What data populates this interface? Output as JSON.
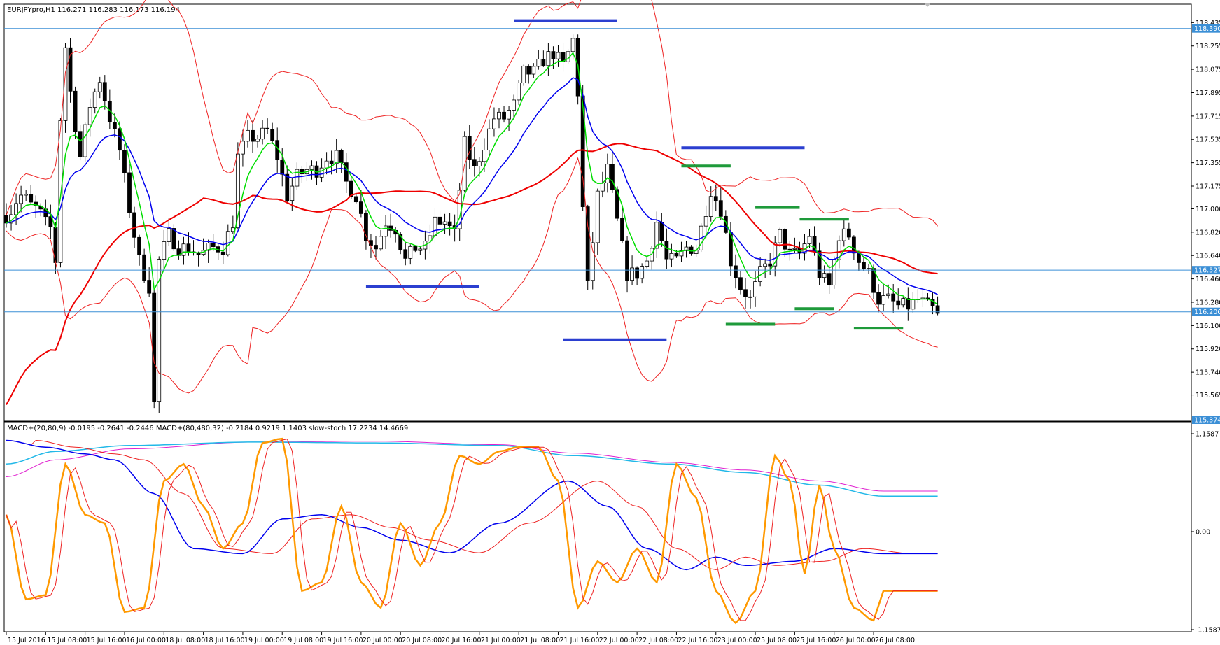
{
  "chart_data": {
    "type": "candlestick",
    "main": {
      "header": "EURJPYpro,H1  116.271 116.283 116.173 116.194",
      "ylim": [
        115.374,
        118.48
      ],
      "y_ticks": [
        "118.435",
        "118.255",
        "118.075",
        "117.895",
        "117.715",
        "117.535",
        "117.355",
        "117.175",
        "117.000",
        "116.820",
        "116.640",
        "116.460",
        "116.280",
        "116.100",
        "115.920",
        "115.740",
        "115.565"
      ],
      "y_tick_values": [
        118.435,
        118.255,
        118.075,
        117.895,
        117.715,
        117.535,
        117.355,
        117.175,
        117.0,
        116.82,
        116.64,
        116.46,
        116.28,
        116.1,
        115.92,
        115.74,
        115.565
      ],
      "price_tags": [
        {
          "label": "118.390",
          "value": 118.39,
          "bg": "#3b8fd6"
        },
        {
          "label": "116.527",
          "value": 116.527,
          "bg": "#3b8fd6"
        },
        {
          "label": "116.206",
          "value": 116.206,
          "bg": "#3b8fd6"
        },
        {
          "label": "115.374",
          "value": 115.374,
          "bg": "#3b8fd6"
        }
      ],
      "hlines": [
        118.39,
        116.527,
        116.206
      ],
      "bar_count": 212,
      "bar_anchors": [
        [
          0,
          116.95
        ],
        [
          3,
          117.1
        ],
        [
          6,
          117.0
        ],
        [
          9,
          116.85
        ],
        [
          10,
          116.6
        ],
        [
          11,
          117.7
        ],
        [
          12,
          118.25
        ],
        [
          13,
          117.9
        ],
        [
          15,
          117.4
        ],
        [
          17,
          117.8
        ],
        [
          19,
          118.0
        ],
        [
          21,
          117.7
        ],
        [
          23,
          117.45
        ],
        [
          25,
          117.0
        ],
        [
          27,
          116.6
        ],
        [
          29,
          116.4
        ],
        [
          30,
          115.5
        ],
        [
          31,
          116.6
        ],
        [
          33,
          116.8
        ],
        [
          35,
          116.7
        ],
        [
          37,
          116.7
        ],
        [
          39,
          116.65
        ],
        [
          42,
          116.7
        ],
        [
          44,
          116.7
        ],
        [
          46,
          116.9
        ],
        [
          47,
          117.4
        ],
        [
          49,
          117.55
        ],
        [
          51,
          117.55
        ],
        [
          53,
          117.6
        ],
        [
          55,
          117.4
        ],
        [
          57,
          117.1
        ],
        [
          59,
          117.25
        ],
        [
          61,
          117.3
        ],
        [
          63,
          117.3
        ],
        [
          65,
          117.4
        ],
        [
          67,
          117.4
        ],
        [
          69,
          117.2
        ],
        [
          71,
          117.1
        ],
        [
          73,
          116.8
        ],
        [
          75,
          116.7
        ],
        [
          77,
          116.9
        ],
        [
          79,
          116.85
        ],
        [
          81,
          116.6
        ],
        [
          83,
          116.7
        ],
        [
          85,
          116.7
        ],
        [
          87,
          116.9
        ],
        [
          89,
          116.9
        ],
        [
          91,
          116.8
        ],
        [
          93,
          117.5
        ],
        [
          95,
          117.3
        ],
        [
          97,
          117.5
        ],
        [
          99,
          117.7
        ],
        [
          101,
          117.7
        ],
        [
          103,
          117.8
        ],
        [
          105,
          118.05
        ],
        [
          107,
          118.05
        ],
        [
          109,
          118.15
        ],
        [
          111,
          118.2
        ],
        [
          113,
          118.1
        ],
        [
          115,
          118.3
        ],
        [
          116,
          117.9
        ],
        [
          117,
          117.0
        ],
        [
          118,
          116.4
        ],
        [
          120,
          117.1
        ],
        [
          122,
          117.3
        ],
        [
          124,
          116.9
        ],
        [
          126,
          116.5
        ],
        [
          128,
          116.5
        ],
        [
          130,
          116.6
        ],
        [
          132,
          116.9
        ],
        [
          134,
          116.6
        ],
        [
          136,
          116.6
        ],
        [
          138,
          116.7
        ],
        [
          140,
          116.7
        ],
        [
          142,
          117.0
        ],
        [
          143,
          117.15
        ],
        [
          145,
          117.0
        ],
        [
          147,
          116.6
        ],
        [
          149,
          116.4
        ],
        [
          151,
          116.3
        ],
        [
          153,
          116.5
        ],
        [
          155,
          116.6
        ],
        [
          157,
          116.8
        ],
        [
          159,
          116.65
        ],
        [
          161,
          116.65
        ],
        [
          163,
          116.8
        ],
        [
          165,
          116.5
        ],
        [
          167,
          116.4
        ],
        [
          169,
          116.8
        ],
        [
          171,
          116.8
        ],
        [
          173,
          116.6
        ],
        [
          175,
          116.5
        ],
        [
          177,
          116.3
        ],
        [
          179,
          116.3
        ],
        [
          181,
          116.25
        ],
        [
          183,
          116.25
        ],
        [
          185,
          116.3
        ],
        [
          187,
          116.25
        ],
        [
          189,
          116.2
        ]
      ],
      "indicators": {
        "ema_fast_color": "#00dd00",
        "ema_mid_color": "#0000ee",
        "ema_slow_color": "#ee0000",
        "bands_color": "#ee2222"
      },
      "annotations": [
        {
          "color": "#2b3fd0",
          "x0": 103,
          "x1": 124,
          "y": 118.45
        },
        {
          "color": "#2b3fd0",
          "x0": 137,
          "x1": 162,
          "y": 117.47
        },
        {
          "color": "#2b3fd0",
          "x0": 73,
          "x1": 96,
          "y": 116.4
        },
        {
          "color": "#2b3fd0",
          "x0": 113,
          "x1": 134,
          "y": 115.99
        },
        {
          "color": "#1e9a3a",
          "x0": 137,
          "x1": 147,
          "y": 117.33
        },
        {
          "color": "#1e9a3a",
          "x0": 152,
          "x1": 161,
          "y": 117.01
        },
        {
          "color": "#1e9a3a",
          "x0": 161,
          "x1": 171,
          "y": 116.92
        },
        {
          "color": "#1e9a3a",
          "x0": 146,
          "x1": 156,
          "y": 116.11
        },
        {
          "color": "#1e9a3a",
          "x0": 160,
          "x1": 168,
          "y": 116.23
        },
        {
          "color": "#1e9a3a",
          "x0": 172,
          "x1": 182,
          "y": 116.08
        }
      ]
    },
    "sub": {
      "header": "MACD+(20,80,9) -0.0195 -0.2641 -0.2446  MACD+(80,480,32) -0.2184 0.9219 1.1403  slow-stoch 17.2234 14.4669",
      "ylim": [
        -1.1587,
        1.1587
      ],
      "y_ticks": [
        "1.1587",
        "0.00",
        "-1.1587"
      ],
      "y_tick_values": [
        1.1587,
        0.0,
        -1.1587
      ],
      "macd_fast_anchors": [
        [
          0,
          1.08
        ],
        [
          8,
          1.0
        ],
        [
          16,
          0.92
        ],
        [
          22,
          0.85
        ],
        [
          30,
          0.45
        ],
        [
          38,
          -0.2
        ],
        [
          48,
          -0.26
        ],
        [
          56,
          0.15
        ],
        [
          64,
          0.2
        ],
        [
          72,
          0.05
        ],
        [
          80,
          -0.1
        ],
        [
          90,
          -0.25
        ],
        [
          100,
          0.1
        ],
        [
          114,
          0.6
        ],
        [
          122,
          0.3
        ],
        [
          130,
          -0.2
        ],
        [
          138,
          -0.45
        ],
        [
          144,
          -0.3
        ],
        [
          150,
          -0.4
        ],
        [
          160,
          -0.35
        ],
        [
          168,
          -0.2
        ],
        [
          178,
          -0.26
        ]
      ],
      "macd_slow_anchors": [
        [
          0,
          0.8
        ],
        [
          10,
          0.95
        ],
        [
          25,
          1.02
        ],
        [
          50,
          1.06
        ],
        [
          75,
          1.05
        ],
        [
          100,
          1.02
        ],
        [
          115,
          0.9
        ],
        [
          135,
          0.8
        ],
        [
          150,
          0.7
        ],
        [
          165,
          0.55
        ],
        [
          178,
          0.42
        ]
      ],
      "macd_slow_signal_anchors": [
        [
          0,
          0.65
        ],
        [
          10,
          0.85
        ],
        [
          25,
          0.98
        ],
        [
          50,
          1.06
        ],
        [
          75,
          1.07
        ],
        [
          100,
          1.03
        ],
        [
          115,
          0.93
        ],
        [
          135,
          0.82
        ],
        [
          150,
          0.73
        ],
        [
          165,
          0.6
        ],
        [
          178,
          0.48
        ]
      ],
      "stoch_anchors": [
        [
          0,
          0.2
        ],
        [
          4,
          -0.8
        ],
        [
          8,
          -0.75
        ],
        [
          12,
          0.8
        ],
        [
          16,
          0.2
        ],
        [
          20,
          0.1
        ],
        [
          24,
          -0.95
        ],
        [
          28,
          -0.9
        ],
        [
          32,
          0.6
        ],
        [
          36,
          0.8
        ],
        [
          40,
          0.3
        ],
        [
          44,
          -0.2
        ],
        [
          48,
          0.1
        ],
        [
          52,
          1.05
        ],
        [
          56,
          1.1
        ],
        [
          60,
          -0.7
        ],
        [
          64,
          -0.6
        ],
        [
          68,
          0.3
        ],
        [
          72,
          -0.6
        ],
        [
          76,
          -0.9
        ],
        [
          80,
          0.1
        ],
        [
          84,
          -0.4
        ],
        [
          88,
          0.1
        ],
        [
          92,
          0.9
        ],
        [
          96,
          0.8
        ],
        [
          100,
          0.95
        ],
        [
          104,
          1.0
        ],
        [
          108,
          1.0
        ],
        [
          112,
          0.6
        ],
        [
          116,
          -0.9
        ],
        [
          120,
          -0.35
        ],
        [
          124,
          -0.6
        ],
        [
          128,
          -0.2
        ],
        [
          132,
          -0.6
        ],
        [
          136,
          0.8
        ],
        [
          140,
          0.4
        ],
        [
          144,
          -0.7
        ],
        [
          148,
          -1.08
        ],
        [
          152,
          -0.7
        ],
        [
          156,
          0.9
        ],
        [
          159,
          0.6
        ],
        [
          162,
          -0.5
        ],
        [
          165,
          0.55
        ],
        [
          168,
          -0.2
        ],
        [
          172,
          -0.9
        ],
        [
          176,
          -1.05
        ],
        [
          178,
          -0.7
        ]
      ],
      "colors": {
        "macd_fast": "#0000ee",
        "macd_fast_signal": "#ee2222",
        "macd_slow": "#22b8e8",
        "macd_slow_signal": "#e020d0",
        "stoch": "#ff9900",
        "stoch_signal": "#ee2222"
      }
    },
    "x_ticks": [
      {
        "label": "15 Jul 2016",
        "bar": 0
      },
      {
        "label": "15 Jul 08:00",
        "bar": 8
      },
      {
        "label": "15 Jul 16:00",
        "bar": 16
      },
      {
        "label": "16 Jul 00:00",
        "bar": 24
      },
      {
        "label": "18 Jul 08:00",
        "bar": 32
      },
      {
        "label": "18 Jul 16:00",
        "bar": 40
      },
      {
        "label": "19 Jul 00:00",
        "bar": 48
      },
      {
        "label": "19 Jul 08:00",
        "bar": 56
      },
      {
        "label": "19 Jul 16:00",
        "bar": 64
      },
      {
        "label": "20 Jul 00:00",
        "bar": 72
      },
      {
        "label": "20 Jul 08:00",
        "bar": 80
      },
      {
        "label": "20 Jul 16:00",
        "bar": 88
      },
      {
        "label": "21 Jul 00:00",
        "bar": 96
      },
      {
        "label": "21 Jul 08:00",
        "bar": 104
      },
      {
        "label": "21 Jul 16:00",
        "bar": 112
      },
      {
        "label": "22 Jul 00:00",
        "bar": 120
      },
      {
        "label": "22 Jul 08:00",
        "bar": 128
      },
      {
        "label": "22 Jul 16:00",
        "bar": 136
      },
      {
        "label": "23 Jul 00:00",
        "bar": 144
      },
      {
        "label": "25 Jul 08:00",
        "bar": 152
      },
      {
        "label": "25 Jul 16:00",
        "bar": 160
      },
      {
        "label": "26 Jul 00:00",
        "bar": 168
      },
      {
        "label": "26 Jul 08:00",
        "bar": 176
      }
    ]
  }
}
